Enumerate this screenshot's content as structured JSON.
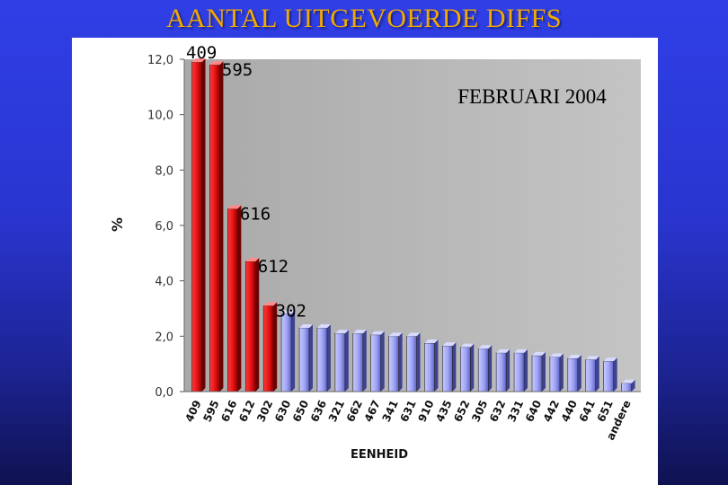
{
  "slide": {
    "title": "AANTAL UITGEVOERDE DIFFS"
  },
  "chart_data": {
    "type": "bar",
    "title": "FEBRUARI 2004",
    "xlabel": "EENHEID",
    "ylabel": "%",
    "ylim": [
      0,
      12.0
    ],
    "yticks": [
      "0,0",
      "2,0",
      "4,0",
      "6,0",
      "8,0",
      "10,0",
      "12,0"
    ],
    "grid": false,
    "categories": [
      "409",
      "595",
      "616",
      "612",
      "302",
      "630",
      "650",
      "636",
      "321",
      "662",
      "467",
      "341",
      "631",
      "910",
      "435",
      "652",
      "305",
      "632",
      "331",
      "640",
      "442",
      "440",
      "641",
      "651",
      "andere"
    ],
    "values": [
      11.9,
      11.8,
      6.6,
      4.7,
      3.1,
      2.8,
      2.3,
      2.3,
      2.1,
      2.1,
      2.05,
      2.0,
      2.0,
      1.75,
      1.65,
      1.6,
      1.55,
      1.4,
      1.4,
      1.3,
      1.25,
      1.2,
      1.15,
      1.1,
      0.3
    ],
    "highlight_colors": {
      "highlight": "#e61212",
      "other": "#9fa3f5"
    },
    "highlighted_count": 5,
    "annotations": [
      {
        "text": "409",
        "category": "409"
      },
      {
        "text": "595",
        "category": "595"
      },
      {
        "text": "616",
        "category": "616"
      },
      {
        "text": "612",
        "category": "612"
      },
      {
        "text": "302",
        "category": "302"
      }
    ]
  }
}
